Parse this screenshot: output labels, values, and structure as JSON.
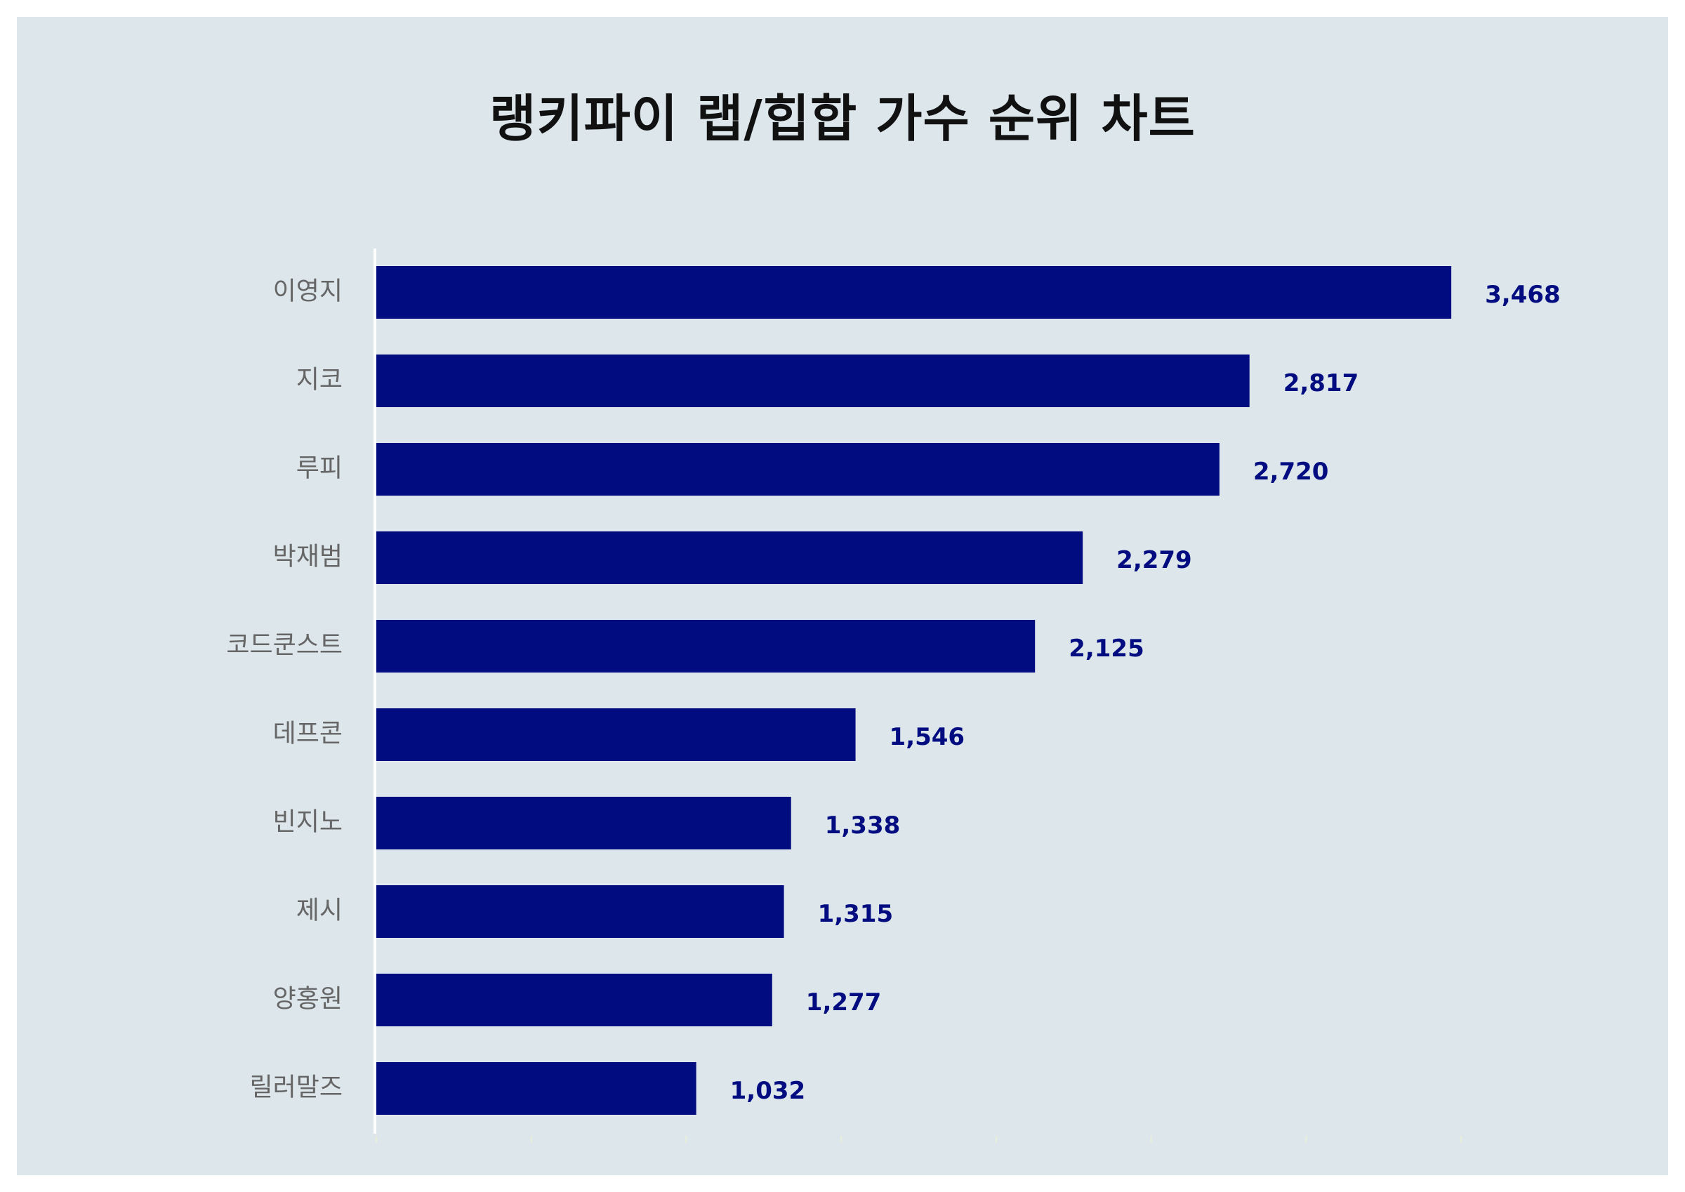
{
  "chart_data": {
    "type": "bar",
    "orientation": "horizontal",
    "title": "랭키파이 랩/힙합 가수 순위 차트",
    "categories": [
      "이영지",
      "지코",
      "루피",
      "박재범",
      "코드쿤스트",
      "데프콘",
      "빈지노",
      "제시",
      "양홍원",
      "릴러말즈"
    ],
    "values": [
      3468,
      2817,
      2720,
      2279,
      2125,
      1546,
      1338,
      1315,
      1277,
      1032
    ],
    "value_labels": [
      "3,468",
      "2,817",
      "2,720",
      "2,279",
      "2,125",
      "1,546",
      "1,338",
      "1,315",
      "1,277",
      "1,032"
    ],
    "xlim": [
      0,
      3500
    ],
    "grid": false,
    "bar_color": "#000c80",
    "label_color": "#000c80",
    "background": "#dce6eb"
  }
}
